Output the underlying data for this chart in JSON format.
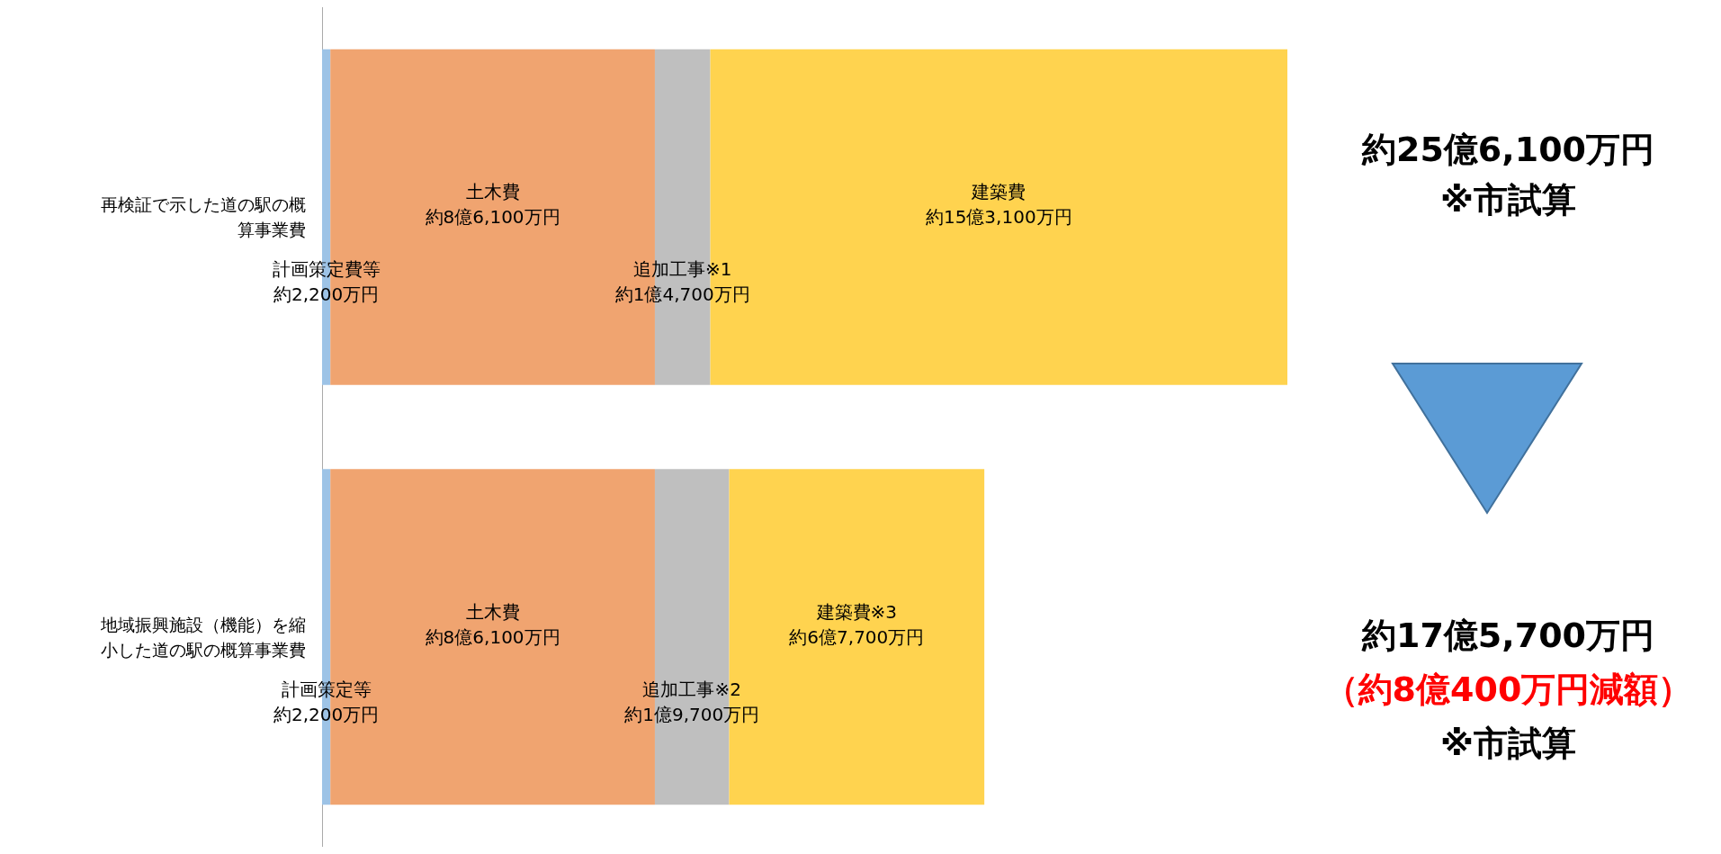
{
  "chart_data": {
    "type": "bar",
    "orientation": "horizontal",
    "stacked": true,
    "grid": false,
    "categories": [
      "再検証で示した道の駅の概算事業費",
      "地域振興施設（機能）を縮小した道の駅の概算事業費"
    ],
    "series": [
      {
        "color": "#9dc3e6",
        "values": [
          2200,
          2200
        ],
        "value_labels": [
          "約2,200万円",
          "約2,200万円"
        ]
      },
      {
        "color": "#f0a470",
        "values": [
          86100,
          86100
        ],
        "value_labels": [
          "約8億6,100万円",
          "約8億6,100万円"
        ]
      },
      {
        "color": "#bfbfbf",
        "values": [
          14700,
          19700
        ],
        "value_labels": [
          "約1億4,700万円",
          "約1億9,700万円"
        ]
      },
      {
        "color": "#ffd34f",
        "values": [
          153100,
          67700
        ],
        "value_labels": [
          "約15億3,100万円",
          "約6億7,700万円"
        ]
      }
    ],
    "annotations": [
      "約25億6,100万円",
      "※市試算",
      "約17億5,700万円",
      "（約8億400万円減額）",
      "※市試算",
      "計画策定費等",
      "土木費",
      "追加工事※1",
      "建築費",
      "計画策定等",
      "土木費",
      "追加工事※2",
      "建築費※3"
    ]
  }
}
